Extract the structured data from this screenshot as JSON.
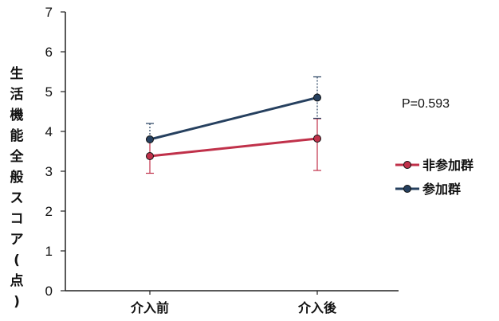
{
  "chart_data": {
    "type": "line",
    "x": [
      "介入前",
      "介入後"
    ],
    "ylabel": "生活機能全般スコア(点)",
    "ylim": [
      0,
      7
    ],
    "yticks": [
      0,
      1,
      2,
      3,
      4,
      5,
      6,
      7
    ],
    "annotation": "P=0.593",
    "legend_position": "right",
    "series": [
      {
        "name": "非参加群",
        "color": "#c0314a",
        "values": [
          3.38,
          3.82
        ],
        "error_low": [
          2.95,
          3.02
        ],
        "error_high": [
          3.82,
          4.32
        ]
      },
      {
        "name": "参加群",
        "color": "#26405f",
        "values": [
          3.8,
          4.85
        ],
        "error_low": [
          3.8,
          4.33
        ],
        "error_high": [
          4.2,
          5.37
        ]
      }
    ]
  }
}
